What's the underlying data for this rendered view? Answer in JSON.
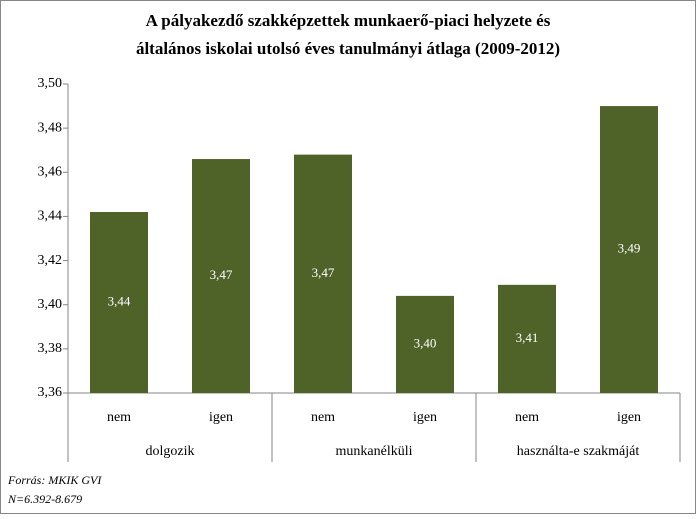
{
  "chart_data": {
    "type": "bar",
    "title": [
      "A pályakezdő szakképzettek munkaerő-piaci helyzete és",
      "általános iskolai utolsó éves tanulmányi átlaga (2009-2012)"
    ],
    "categories": [
      "nem",
      "igen",
      "nem",
      "igen",
      "nem",
      "igen"
    ],
    "groups": [
      "dolgozik",
      "munkanélküli",
      "használta-e szakmáját"
    ],
    "values": [
      3.442,
      3.466,
      3.468,
      3.404,
      3.409,
      3.49
    ],
    "value_labels": [
      "3,44",
      "3,47",
      "3,47",
      "3,40",
      "3,41",
      "3,49"
    ],
    "color": "#4f6228",
    "ylim": [
      3.36,
      3.5
    ],
    "yticks": [
      {
        "value": 3.36,
        "label": "3,36"
      },
      {
        "value": 3.38,
        "label": "3,38"
      },
      {
        "value": 3.4,
        "label": "3,40"
      },
      {
        "value": 3.42,
        "label": "3,42"
      },
      {
        "value": 3.44,
        "label": "3,44"
      },
      {
        "value": 3.46,
        "label": "3,46"
      },
      {
        "value": 3.48,
        "label": "3,48"
      },
      {
        "value": 3.5,
        "label": "3,50"
      }
    ],
    "source": [
      "Forrás: MKIK GVI",
      "N=6.392-8.679"
    ]
  }
}
